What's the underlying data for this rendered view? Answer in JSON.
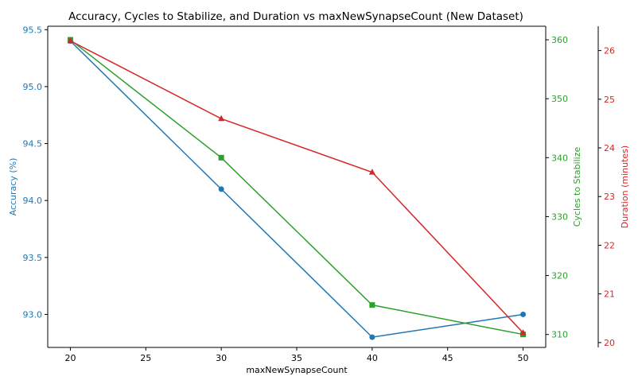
{
  "chart_data": {
    "type": "line",
    "title": "Accuracy, Cycles to Stabilize, and Duration vs maxNewSynapseCount (New Dataset)",
    "xlabel": "maxNewSynapseCount",
    "x": [
      20,
      30,
      40,
      50
    ],
    "xlim": [
      18.5,
      51.5
    ],
    "xticks": [
      20,
      25,
      30,
      35,
      40,
      45,
      50
    ],
    "grid": false,
    "series": [
      {
        "name": "Accuracy (%)",
        "axis": "left",
        "color": "#1f77b4",
        "marker": "circle",
        "values": [
          95.4,
          94.1,
          92.8,
          93.0
        ],
        "ylabel": "Accuracy (%)",
        "ylim": [
          92.71,
          95.53
        ],
        "yticks": [
          93.0,
          93.5,
          94.0,
          94.5,
          95.0,
          95.5
        ]
      },
      {
        "name": "Cycles to Stabilize",
        "axis": "right",
        "color": "#2ca02c",
        "marker": "square",
        "values": [
          360,
          340,
          315,
          310
        ],
        "ylabel": "Cycles to Stabilize",
        "ylim": [
          307.8,
          362.3
        ],
        "yticks": [
          310,
          320,
          330,
          340,
          350,
          360
        ]
      },
      {
        "name": "Duration (minutes)",
        "axis": "right-outer",
        "color": "#d62728",
        "marker": "triangle",
        "values": [
          26.2,
          24.6,
          23.5,
          20.2
        ],
        "ylabel": "Duration (minutes)",
        "ylim": [
          19.9,
          26.5
        ],
        "yticks": [
          20,
          21,
          22,
          23,
          24,
          25,
          26
        ]
      }
    ]
  }
}
